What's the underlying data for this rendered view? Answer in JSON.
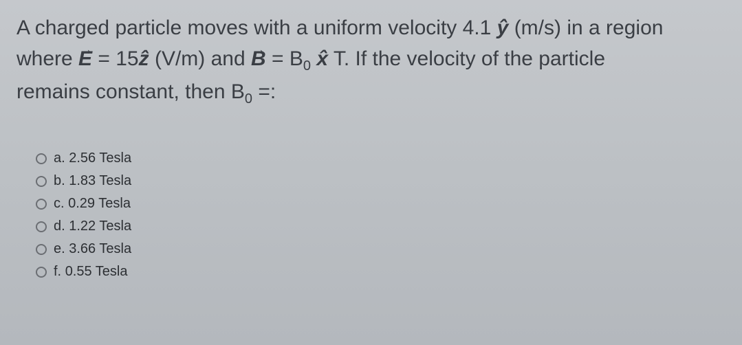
{
  "question": {
    "line1_part1": "A charged particle moves with a uniform velocity 4.1 ",
    "line1_yhat": "ŷ",
    "line1_part2": " (m/s) in a region",
    "line2_part1": "where ",
    "line2_Evec": "E",
    "line2_part2": " = 15",
    "line2_zhat": "ẑ",
    "line2_part3": " (V/m) and ",
    "line2_Bvec": "B",
    "line2_part4": " = B",
    "line2_sub0_a": "0",
    "line2_space": " ",
    "line2_xhat": "x̂",
    "line2_part5": " T. If the velocity of the particle",
    "line3_part1": "remains constant, then B",
    "line3_sub0": "0",
    "line3_part2": " =:"
  },
  "options": [
    {
      "letter": "a.",
      "value": "2.56 Tesla"
    },
    {
      "letter": "b.",
      "value": "1.83 Tesla"
    },
    {
      "letter": "c.",
      "value": "0.29 Tesla"
    },
    {
      "letter": "d.",
      "value": "1.22 Tesla"
    },
    {
      "letter": "e.",
      "value": "3.66 Tesla"
    },
    {
      "letter": "f.",
      "value": "0.55 Tesla"
    }
  ],
  "styling": {
    "background_gradient_top": "#c5c8cc",
    "background_gradient_bottom": "#b4b8bd",
    "question_color": "#3a3e44",
    "option_color": "#2c2f33",
    "radio_border": "#6b6e73",
    "question_fontsize": 30,
    "option_fontsize": 20
  }
}
